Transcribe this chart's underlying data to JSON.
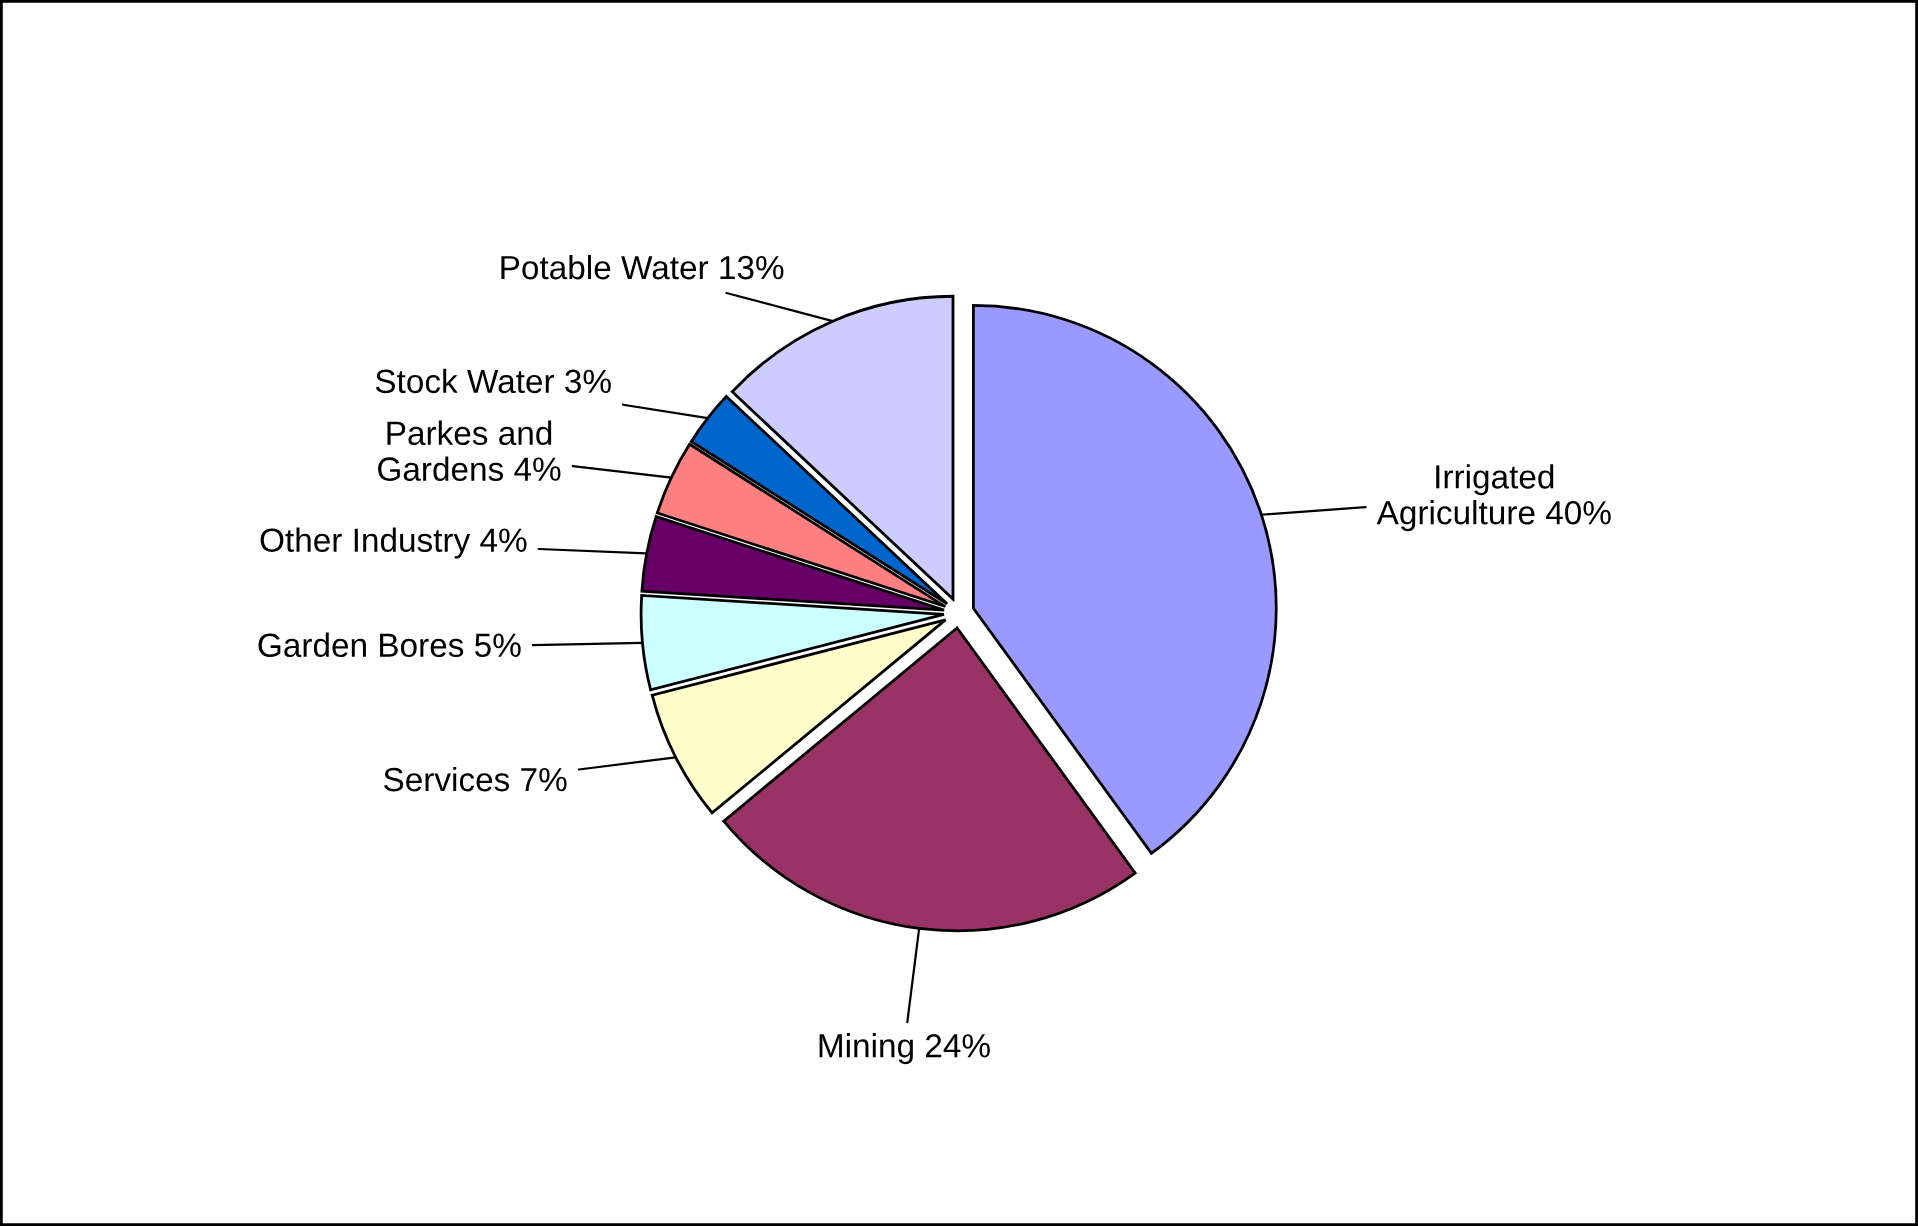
{
  "chart_data": {
    "type": "pie",
    "categories": [
      "Irrigated\nAgriculture 40%",
      "Mining 24%",
      "Services 7%",
      "Garden Bores 5%",
      "Other Industry 4%",
      "Parkes and\nGardens 4%",
      "Stock Water 3%",
      "Potable Water 13%"
    ],
    "values": [
      40,
      24,
      7,
      5,
      4,
      4,
      3,
      13
    ],
    "colors": [
      "#9999ff",
      "#993366",
      "#ffffcc",
      "#ccffff",
      "#660066",
      "#ff8080",
      "#0066cc",
      "#ccccff"
    ],
    "legend": false
  }
}
